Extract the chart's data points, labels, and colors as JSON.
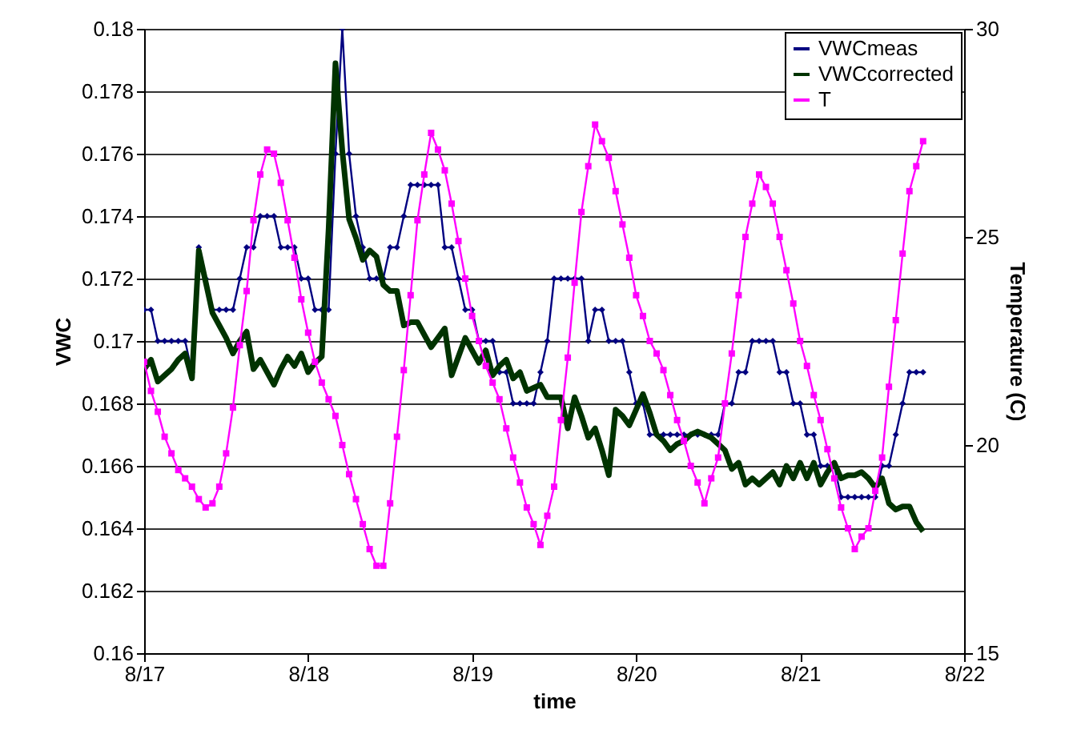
{
  "chart_data": {
    "type": "line",
    "xlabel": "time",
    "ylabel": "VWC",
    "y2label": "Temperature (C)",
    "categories": [
      "8/17",
      null,
      null,
      null,
      null,
      null,
      null,
      null,
      null,
      null,
      null,
      null,
      null,
      null,
      null,
      null,
      null,
      null,
      null,
      null,
      null,
      null,
      null,
      null,
      "8/18",
      null,
      null,
      null,
      null,
      null,
      null,
      null,
      null,
      null,
      null,
      null,
      null,
      null,
      null,
      null,
      null,
      null,
      null,
      null,
      null,
      null,
      null,
      null,
      "8/19",
      null,
      null,
      null,
      null,
      null,
      null,
      null,
      null,
      null,
      null,
      null,
      null,
      null,
      null,
      null,
      null,
      null,
      null,
      null,
      null,
      null,
      null,
      null,
      "8/20",
      null,
      null,
      null,
      null,
      null,
      null,
      null,
      null,
      null,
      null,
      null,
      null,
      null,
      null,
      null,
      null,
      null,
      null,
      null,
      null,
      null,
      null,
      null,
      "8/21",
      null,
      null,
      null,
      null,
      null,
      null,
      null,
      null,
      null,
      null,
      null,
      null,
      null,
      null,
      null,
      null,
      null,
      null,
      null,
      null,
      null,
      null,
      null,
      "8/22"
    ],
    "ylim": [
      0.16,
      0.18
    ],
    "yticks": [
      0.16,
      0.162,
      0.164,
      0.166,
      0.168,
      0.17,
      0.172,
      0.174,
      0.176,
      0.178,
      0.18
    ],
    "y2lim": [
      15,
      30
    ],
    "y2ticks": [
      15,
      20,
      25,
      30
    ],
    "grid": "y",
    "legend": "top right",
    "line_style": "solid",
    "series": [
      {
        "name": "VWCmeas",
        "color": "#000080",
        "marker": "diamond",
        "values": [
          0.171,
          0.171,
          0.17,
          0.17,
          0.17,
          0.17,
          0.17,
          0.169,
          0.173,
          0.172,
          0.171,
          0.171,
          0.171,
          0.171,
          0.172,
          0.173,
          0.173,
          0.174,
          0.174,
          0.174,
          0.173,
          0.173,
          0.173,
          0.172,
          0.172,
          0.171,
          0.171,
          0.171,
          0.176,
          0.18,
          0.176,
          0.174,
          0.173,
          0.172,
          0.172,
          0.172,
          0.173,
          0.173,
          0.174,
          0.175,
          0.175,
          0.175,
          0.175,
          0.175,
          0.173,
          0.173,
          0.172,
          0.171,
          0.171,
          0.17,
          0.17,
          0.17,
          0.169,
          0.169,
          0.168,
          0.168,
          0.168,
          0.168,
          0.169,
          0.17,
          0.172,
          0.172,
          0.172,
          0.172,
          0.172,
          0.17,
          0.171,
          0.171,
          0.17,
          0.17,
          0.17,
          0.169,
          0.168,
          0.168,
          0.167,
          0.167,
          0.167,
          0.167,
          0.167,
          0.167,
          0.167,
          0.167,
          0.167,
          0.167,
          0.167,
          0.168,
          0.168,
          0.169,
          0.169,
          0.17,
          0.17,
          0.17,
          0.17,
          0.169,
          0.169,
          0.168,
          0.168,
          0.167,
          0.167,
          0.166,
          0.166,
          0.166,
          0.165,
          0.165,
          0.165,
          0.165,
          0.165,
          0.165,
          0.166,
          0.166,
          0.167,
          0.168,
          0.169,
          0.169,
          0.169,
          null,
          null,
          null,
          null,
          null,
          null
        ]
      },
      {
        "name": "VWCcorrected",
        "color": "#003300",
        "marker": "none",
        "values": [
          0.1691,
          0.1694,
          0.1687,
          0.1689,
          0.1691,
          0.1694,
          0.1696,
          0.1688,
          0.1729,
          0.1719,
          0.1709,
          0.1705,
          0.1701,
          0.1696,
          0.17,
          0.1703,
          0.1691,
          0.1694,
          0.169,
          0.1686,
          0.1691,
          0.1695,
          0.1692,
          0.1696,
          0.169,
          0.1693,
          0.1695,
          0.1736,
          0.1789,
          0.1761,
          0.1739,
          0.1733,
          0.1726,
          0.1729,
          0.1727,
          0.1718,
          0.1716,
          0.1716,
          0.1705,
          0.1706,
          0.1706,
          0.1702,
          0.1698,
          0.1701,
          0.1704,
          0.1689,
          0.1695,
          0.1701,
          0.1697,
          0.1693,
          0.1697,
          0.1689,
          0.1692,
          0.1694,
          0.1688,
          0.169,
          0.1684,
          0.1685,
          0.1686,
          0.1682,
          0.1682,
          0.1682,
          0.1672,
          0.1682,
          0.1676,
          0.1669,
          0.1672,
          0.1665,
          0.1657,
          0.1678,
          0.1676,
          0.1673,
          0.1678,
          0.1683,
          0.1677,
          0.167,
          0.1668,
          0.1665,
          0.1667,
          0.1668,
          0.167,
          0.1671,
          0.167,
          0.1669,
          0.1667,
          0.1665,
          0.1659,
          0.1661,
          0.1654,
          0.1656,
          0.1654,
          0.1656,
          0.1658,
          0.1654,
          0.166,
          0.1656,
          0.1661,
          0.1656,
          0.1661,
          0.1654,
          0.1658,
          0.1661,
          0.1656,
          0.1657,
          0.1657,
          0.1658,
          0.1656,
          0.1653,
          0.1656,
          0.1648,
          0.1646,
          0.1647,
          0.1647,
          0.1642,
          0.1639,
          null,
          null,
          null,
          null,
          null,
          null
        ]
      },
      {
        "name": "T",
        "color": "#ff00ff",
        "marker": "square",
        "axis": "y2",
        "values": [
          22.0,
          21.3,
          20.8,
          20.2,
          19.8,
          19.4,
          19.2,
          19.0,
          18.7,
          18.5,
          18.6,
          19.0,
          19.8,
          20.9,
          22.4,
          23.7,
          25.4,
          26.5,
          27.1,
          27.0,
          26.3,
          25.4,
          24.5,
          23.5,
          22.7,
          22.0,
          21.5,
          21.1,
          20.7,
          20.0,
          19.3,
          18.7,
          18.1,
          17.5,
          17.1,
          17.1,
          18.6,
          20.2,
          21.8,
          23.6,
          25.4,
          26.5,
          27.5,
          27.1,
          26.6,
          25.8,
          24.9,
          24.0,
          23.1,
          22.5,
          21.9,
          21.5,
          21.1,
          20.4,
          19.7,
          19.1,
          18.5,
          18.1,
          17.6,
          18.3,
          19.0,
          20.6,
          22.1,
          23.9,
          25.6,
          26.7,
          27.7,
          27.3,
          26.9,
          26.1,
          25.3,
          24.5,
          23.6,
          23.1,
          22.5,
          22.2,
          21.8,
          21.2,
          20.6,
          20.1,
          19.5,
          19.1,
          18.6,
          19.2,
          19.7,
          21.0,
          22.2,
          23.6,
          25.0,
          25.8,
          26.5,
          26.2,
          25.8,
          25.0,
          24.2,
          23.4,
          22.5,
          21.9,
          21.2,
          20.6,
          19.9,
          19.2,
          18.5,
          18.0,
          17.5,
          17.8,
          18.0,
          18.9,
          19.7,
          21.4,
          23.0,
          24.6,
          26.1,
          26.7,
          27.3,
          null,
          null,
          null,
          null,
          null,
          null
        ]
      }
    ]
  }
}
